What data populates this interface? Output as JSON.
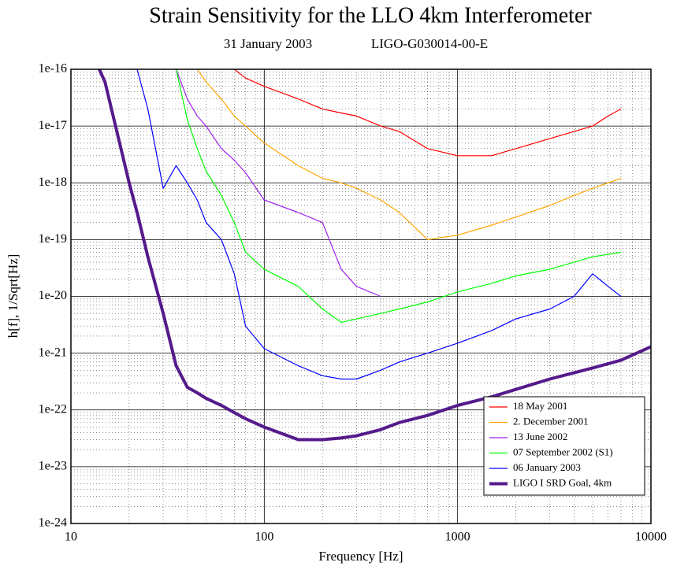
{
  "chart_data": {
    "type": "line",
    "title": "Strain Sensitivity for the LLO 4km Interferometer",
    "subtitle": "31 January 2003",
    "annotations": [
      "LIGO-G030014-00-E"
    ],
    "xlabel": "Frequency [Hz]",
    "ylabel": "h[f], 1/Sqrt[Hz]",
    "xscale": "log",
    "yscale": "log",
    "grid": true,
    "minor_grid": true,
    "legend": "lower right",
    "xlim": [
      10,
      10000
    ],
    "ylim": [
      1e-24,
      1e-16
    ],
    "xticks": [
      10,
      100,
      1000,
      10000
    ],
    "yticks": [
      1e-24,
      1e-23,
      1e-22,
      1e-21,
      1e-20,
      1e-19,
      1e-18,
      1e-17,
      1e-16
    ],
    "x": [
      14,
      15,
      20,
      22,
      25,
      30,
      35,
      40,
      45,
      50,
      60,
      70,
      80,
      100,
      150,
      200,
      250,
      300,
      400,
      500,
      700,
      1000,
      1500,
      2000,
      3000,
      4000,
      5000,
      6000,
      7000,
      10000
    ],
    "series": [
      {
        "name": "18 May 2001",
        "color": "#ff0000",
        "line_width": 1.2,
        "values": [
          null,
          null,
          null,
          null,
          null,
          null,
          null,
          null,
          null,
          null,
          null,
          1e-16,
          7e-17,
          5e-17,
          3e-17,
          2e-17,
          1.7e-17,
          1.5e-17,
          1e-17,
          8e-18,
          4e-18,
          3e-18,
          3e-18,
          4e-18,
          6e-18,
          8e-18,
          1e-17,
          1.5e-17,
          2e-17,
          null
        ]
      },
      {
        "name": "2. December 2001",
        "color": "#ffa500",
        "line_width": 1.2,
        "values": [
          null,
          null,
          null,
          null,
          null,
          null,
          null,
          null,
          1e-16,
          6e-17,
          3e-17,
          1.5e-17,
          1e-17,
          5e-18,
          2e-18,
          1.2e-18,
          1e-18,
          8e-19,
          5e-19,
          3e-19,
          1e-19,
          1.2e-19,
          1.8e-19,
          2.5e-19,
          4e-19,
          6e-19,
          8e-19,
          1e-18,
          1.2e-18,
          null
        ]
      },
      {
        "name": "13 June 2002",
        "color": "#a020f0",
        "line_width": 1.2,
        "values": [
          null,
          null,
          null,
          null,
          null,
          null,
          1e-16,
          3e-17,
          1.5e-17,
          1e-17,
          4e-18,
          2.5e-18,
          1.5e-18,
          5e-19,
          3e-19,
          2e-19,
          3e-20,
          1.5e-20,
          1e-20,
          null,
          null,
          null,
          null,
          null,
          null,
          null,
          null,
          null,
          null,
          null
        ]
      },
      {
        "name": "07 September 2002 (S1)",
        "color": "#00ff00",
        "line_width": 1.2,
        "values": [
          null,
          null,
          null,
          null,
          null,
          null,
          1e-16,
          1.3e-17,
          4e-18,
          1.6e-18,
          6e-19,
          2e-19,
          6e-20,
          3e-20,
          1.5e-20,
          6e-21,
          3.5e-21,
          4e-21,
          5e-21,
          6e-21,
          8e-21,
          1.2e-20,
          1.7e-20,
          2.3e-20,
          3e-20,
          4e-20,
          5e-20,
          5.5e-20,
          6e-20,
          null
        ]
      },
      {
        "name": "06 January 2003",
        "color": "#0000ff",
        "line_width": 1.2,
        "values": [
          null,
          null,
          null,
          1e-16,
          2e-17,
          8e-19,
          2e-18,
          1e-18,
          5e-19,
          2e-19,
          1e-19,
          2.5e-20,
          3e-21,
          1.2e-21,
          6e-22,
          4e-22,
          3.5e-22,
          3.5e-22,
          5e-22,
          7e-22,
          1e-21,
          1.5e-21,
          2.5e-21,
          4e-21,
          6e-21,
          1e-20,
          2.5e-20,
          1.5e-20,
          1e-20,
          null
        ]
      },
      {
        "name": "LIGO I SRD Goal, 4km",
        "color": "#551a8b",
        "line_width": 4,
        "values": [
          1e-16,
          6e-17,
          1e-18,
          3e-19,
          5e-20,
          5e-21,
          6e-22,
          2.5e-22,
          2e-22,
          1.6e-22,
          1.2e-22,
          9e-23,
          7e-23,
          5e-23,
          3e-23,
          3e-23,
          3.2e-23,
          3.5e-23,
          4.5e-23,
          6e-23,
          8e-23,
          1.2e-22,
          1.7e-22,
          2.3e-22,
          3.5e-22,
          4.5e-22,
          5.5e-22,
          6.5e-22,
          7.5e-22,
          1.3e-21
        ]
      }
    ]
  }
}
